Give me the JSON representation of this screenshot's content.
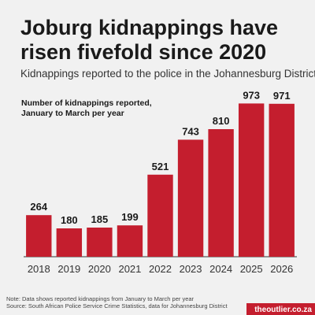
{
  "chart_data": {
    "type": "bar",
    "title": [
      "Joburg kidnappings have",
      "risen fivefold since 2020"
    ],
    "subtitle": "Kidnappings reported to the police in the Johannesburg District",
    "annotation": [
      "Number of kidnappings reported,",
      "January to March per year"
    ],
    "categories": [
      "2018",
      "2019",
      "2020",
      "2021",
      "2022",
      "2023",
      "2024",
      "2025",
      "2026"
    ],
    "values": [
      264,
      180,
      185,
      199,
      521,
      743,
      810,
      973,
      971
    ],
    "color": "#c41e2e",
    "ylim": [
      0,
      1000
    ],
    "notes": [
      "Note: Data shows reported kidnappings from January to March per year",
      "Source: South African Police Service Crime Statistics, data for Johannesburg District"
    ],
    "brand": "theoutlier.co.za"
  }
}
